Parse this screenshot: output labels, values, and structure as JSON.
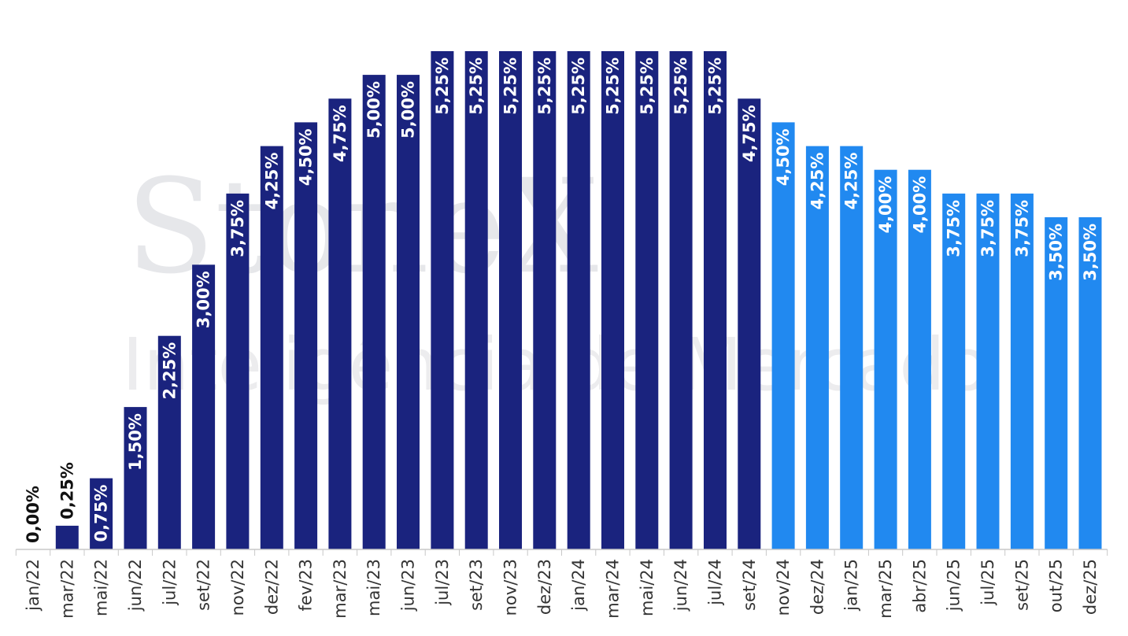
{
  "watermark": {
    "line1": "StoneX",
    "line2": "Inteligência de Mercado"
  },
  "chart_data": {
    "type": "bar",
    "categories": [
      "jan/22",
      "mar/22",
      "mai/22",
      "jun/22",
      "jul/22",
      "set/22",
      "nov/22",
      "dez/22",
      "fev/23",
      "mar/23",
      "mai/23",
      "jun/23",
      "jul/23",
      "set/23",
      "nov/23",
      "dez/23",
      "jan/24",
      "mar/24",
      "mai/24",
      "jun/24",
      "jul/24",
      "set/24",
      "nov/24",
      "dez/24",
      "jan/25",
      "mar/25",
      "abr/25",
      "jun/25",
      "jul/25",
      "set/25",
      "out/25",
      "dez/25"
    ],
    "values": [
      0.0,
      0.25,
      0.75,
      1.5,
      2.25,
      3.0,
      3.75,
      4.25,
      4.5,
      4.75,
      5.0,
      5.0,
      5.25,
      5.25,
      5.25,
      5.25,
      5.25,
      5.25,
      5.25,
      5.25,
      5.25,
      4.75,
      4.5,
      4.25,
      4.25,
      4.0,
      4.0,
      3.75,
      3.75,
      3.75,
      3.5,
      3.5
    ],
    "labels": [
      "0,00%",
      "0,25%",
      "0,75%",
      "1,50%",
      "2,25%",
      "3,00%",
      "3,75%",
      "4,25%",
      "4,50%",
      "4,75%",
      "5,00%",
      "5,00%",
      "5,25%",
      "5,25%",
      "5,25%",
      "5,25%",
      "5,25%",
      "5,25%",
      "5,25%",
      "5,25%",
      "5,25%",
      "4,75%",
      "4,50%",
      "4,25%",
      "4,25%",
      "4,00%",
      "4,00%",
      "3,75%",
      "3,75%",
      "3,75%",
      "3,50%",
      "3,50%"
    ],
    "ylim": [
      0,
      5.25
    ],
    "grid": false,
    "title": "",
    "xlabel": "",
    "ylabel": "",
    "realized_count": 22,
    "colors": {
      "realized": "#1a237e",
      "projected": "#2189f0",
      "label_inside": "#ffffff",
      "label_outside": "#111111",
      "axis": "#c8c8c8"
    }
  }
}
